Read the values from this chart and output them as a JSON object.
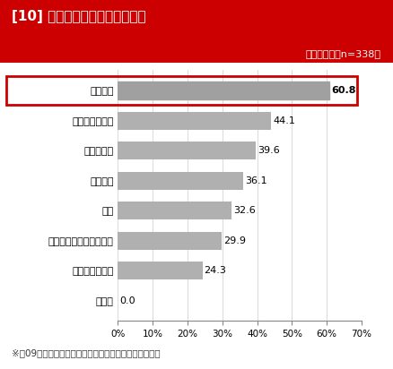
{
  "title": "[10] アウトソースしている内容",
  "subtitle": "（複数回答、n=338）",
  "categories": [
    "デザイン",
    "コンテンツ配信",
    "戦略・企画",
    "原稿執筆",
    "運用",
    "ウェブサイト開発・作成",
    "プロモーション",
    "その他"
  ],
  "values": [
    60.8,
    44.1,
    39.6,
    36.1,
    32.6,
    29.9,
    24.3,
    0.0
  ],
  "bar_color": "#b0b0b0",
  "highlight_bar_color": "#a0a0a0",
  "title_bg_color": "#cc0000",
  "title_text_color": "#ffffff",
  "highlight_box_color": "#cc0000",
  "footnote": "※［09］において「すべて自社内」と回答した人を除く",
  "xlim": [
    0,
    70
  ],
  "xticks": [
    0,
    10,
    20,
    30,
    40,
    50,
    60,
    70
  ],
  "xtick_labels": [
    "0%",
    "10%",
    "20%",
    "30%",
    "40%",
    "50%",
    "60%",
    "70%"
  ]
}
